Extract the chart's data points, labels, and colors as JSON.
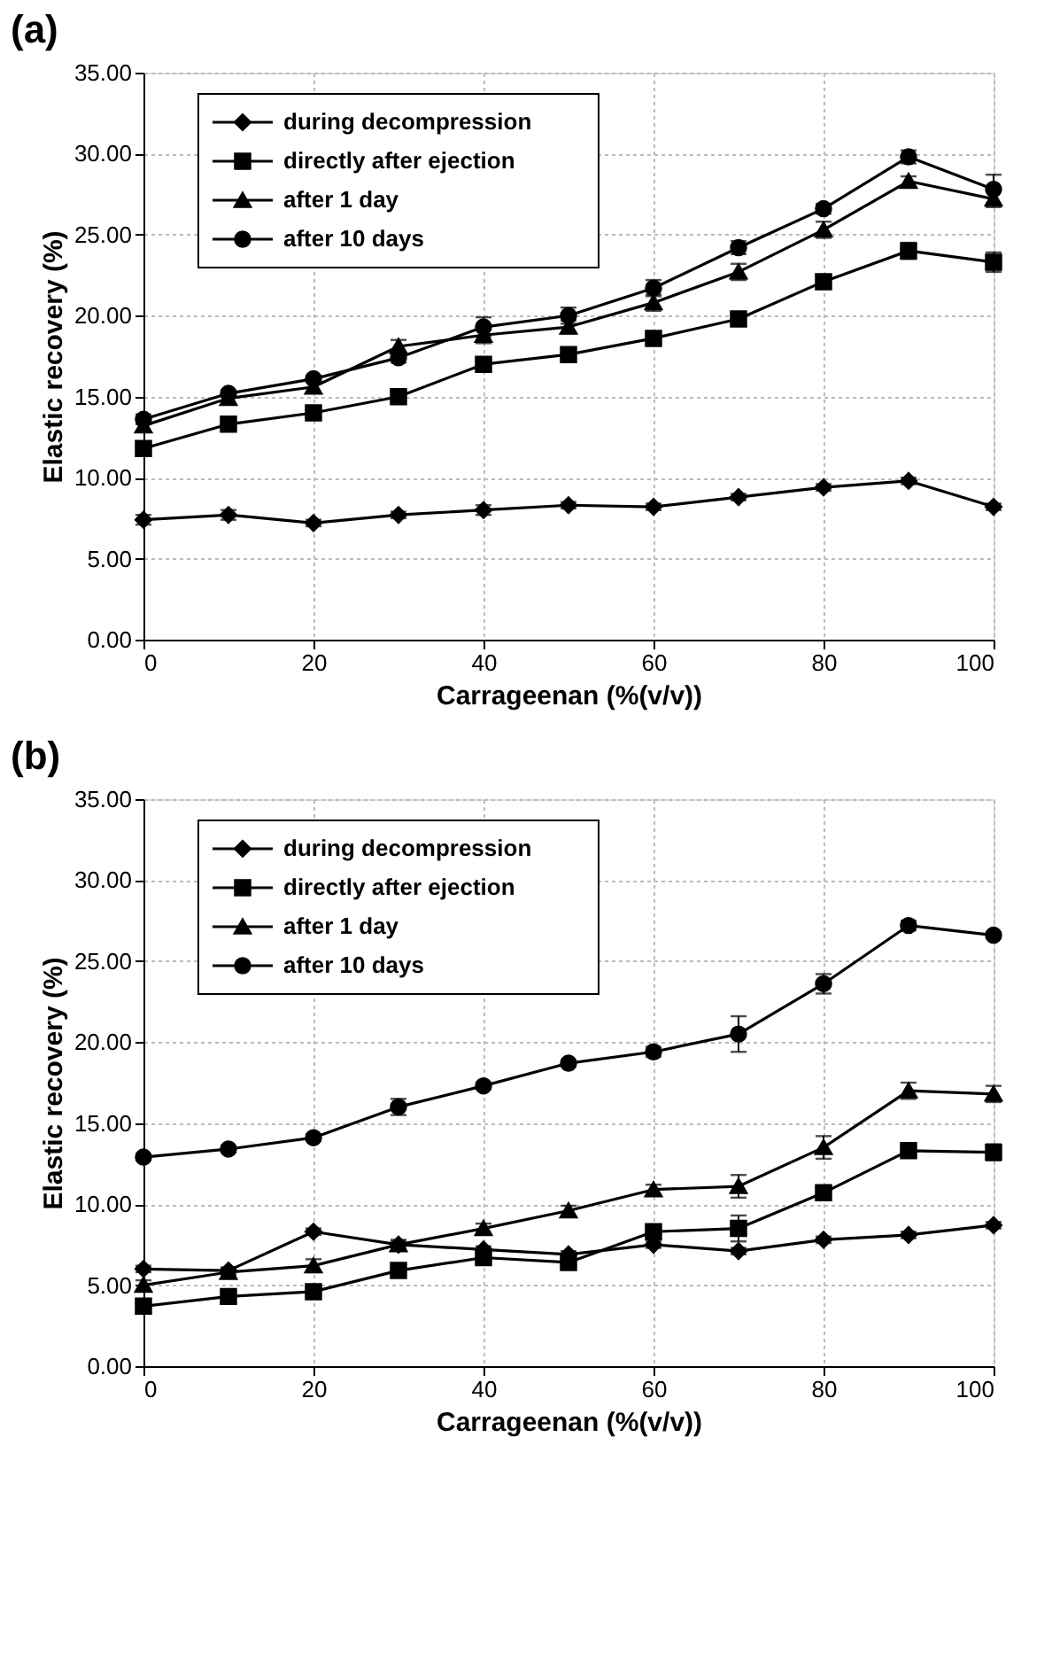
{
  "chart_data": [
    {
      "type": "line",
      "title": "(a)",
      "xlabel": "Carrageenan (%(v/v))",
      "ylabel": "Elastic recovery (%)",
      "x": [
        0,
        10,
        20,
        30,
        40,
        50,
        60,
        70,
        80,
        90,
        100
      ],
      "xlim": [
        0,
        100
      ],
      "xticks": [
        0,
        20,
        40,
        60,
        80,
        100
      ],
      "ylim": [
        0,
        35
      ],
      "yticks": [
        {
          "value": 0,
          "label": "0.00"
        },
        {
          "value": 5,
          "label": "5.00"
        },
        {
          "value": 10,
          "label": "10.00"
        },
        {
          "value": 15,
          "label": "15.00"
        },
        {
          "value": 20,
          "label": "20.00"
        },
        {
          "value": 25,
          "label": "25.00"
        },
        {
          "value": 30,
          "label": "30.00"
        },
        {
          "value": 35,
          "label": "35.00"
        }
      ],
      "grid": true,
      "legend": "top left",
      "line_style": "solid",
      "series": [
        {
          "name": "during decompression",
          "color": "#000000",
          "marker": "diamond",
          "values": [
            7.4,
            7.7,
            7.2,
            7.7,
            8.0,
            8.3,
            8.2,
            8.8,
            9.4,
            9.8,
            8.2
          ],
          "errors": [
            0.3,
            0.3,
            0.2,
            0.2,
            0.3,
            0.2,
            0.2,
            0.2,
            0.2,
            0.2,
            0.2
          ]
        },
        {
          "name": "directly after ejection",
          "color": "#000000",
          "marker": "square",
          "values": [
            11.8,
            13.3,
            14.0,
            15.0,
            17.0,
            17.6,
            18.6,
            19.8,
            22.1,
            24.0,
            23.3
          ],
          "errors": [
            0.3,
            0.2,
            0.2,
            0.3,
            0.4,
            0.3,
            0.2,
            0.3,
            0.3,
            0.5,
            0.6
          ]
        },
        {
          "name": "after  1 day",
          "color": "#000000",
          "marker": "triangle",
          "values": [
            13.2,
            14.9,
            15.6,
            18.1,
            18.8,
            19.3,
            20.8,
            22.7,
            25.3,
            28.3,
            27.2
          ],
          "errors": [
            0.3,
            0.3,
            0.3,
            0.4,
            0.5,
            0.4,
            0.5,
            0.5,
            0.5,
            0.3,
            0.5
          ]
        },
        {
          "name": "after 10 days",
          "color": "#000000",
          "marker": "circle",
          "values": [
            13.6,
            15.2,
            16.1,
            17.4,
            19.3,
            20.0,
            21.7,
            24.2,
            26.6,
            29.8,
            27.8
          ],
          "errors": [
            0.3,
            0.2,
            0.2,
            0.3,
            0.6,
            0.5,
            0.5,
            0.4,
            0.3,
            0.4,
            0.9
          ]
        }
      ]
    },
    {
      "type": "line",
      "title": "(b)",
      "xlabel": "Carrageenan (%(v/v))",
      "ylabel": "Elastic recovery (%)",
      "x": [
        0,
        10,
        20,
        30,
        40,
        50,
        60,
        70,
        80,
        90,
        100
      ],
      "xlim": [
        0,
        100
      ],
      "xticks": [
        0,
        20,
        40,
        60,
        80,
        100
      ],
      "ylim": [
        0,
        35
      ],
      "yticks": [
        {
          "value": 0,
          "label": "0.00"
        },
        {
          "value": 5,
          "label": "5.00"
        },
        {
          "value": 10,
          "label": "10.00"
        },
        {
          "value": 15,
          "label": "15.00"
        },
        {
          "value": 20,
          "label": "20.00"
        },
        {
          "value": 25,
          "label": "25.00"
        },
        {
          "value": 30,
          "label": "30.00"
        },
        {
          "value": 35,
          "label": "35.00"
        }
      ],
      "grid": true,
      "legend": "top left",
      "line_style": "solid",
      "series": [
        {
          "name": "during decompression",
          "color": "#000000",
          "marker": "diamond",
          "values": [
            6.0,
            5.9,
            8.3,
            7.5,
            7.2,
            6.9,
            7.5,
            7.1,
            7.8,
            8.1,
            8.7
          ],
          "errors": [
            0.2,
            0.2,
            0.2,
            0.2,
            0.2,
            0.2,
            0.2,
            0.2,
            0.2,
            0.2,
            0.2
          ]
        },
        {
          "name": "directly after ejection",
          "color": "#000000",
          "marker": "square",
          "values": [
            3.7,
            4.3,
            4.6,
            5.9,
            6.7,
            6.4,
            8.3,
            8.5,
            10.7,
            13.3,
            13.2
          ],
          "errors": [
            0.3,
            0.2,
            0.2,
            0.3,
            0.3,
            0.4,
            0.4,
            0.8,
            0.4,
            0.4,
            0.5
          ]
        },
        {
          "name": "after  1 day",
          "color": "#000000",
          "marker": "triangle",
          "values": [
            5.0,
            5.8,
            6.2,
            7.5,
            8.5,
            9.6,
            10.9,
            11.1,
            13.5,
            17.0,
            16.8
          ],
          "errors": [
            0.3,
            0.2,
            0.4,
            0.3,
            0.3,
            0.3,
            0.3,
            0.7,
            0.7,
            0.5,
            0.5
          ]
        },
        {
          "name": "after 10 days",
          "color": "#000000",
          "marker": "circle",
          "values": [
            12.9,
            13.4,
            14.1,
            16.0,
            17.3,
            18.7,
            19.4,
            20.5,
            23.6,
            27.2,
            26.6
          ],
          "errors": [
            0.2,
            0.2,
            0.2,
            0.5,
            0.2,
            0.2,
            0.3,
            1.1,
            0.6,
            0.3,
            0.2
          ]
        }
      ]
    }
  ]
}
